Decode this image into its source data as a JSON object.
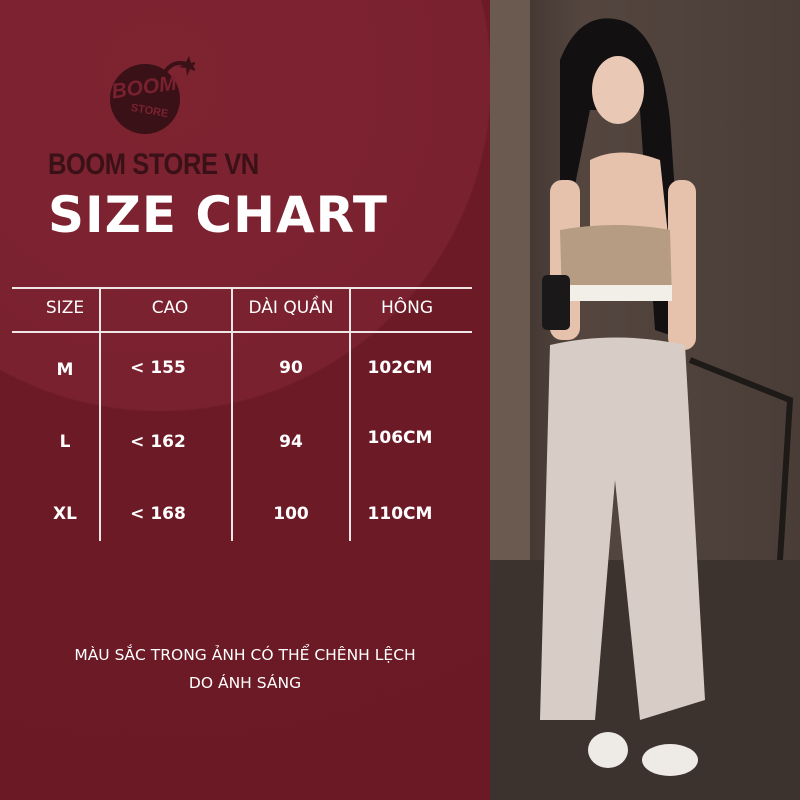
{
  "brand": {
    "logo_text": "BOOM STORE",
    "name": "BOOM STORE VN"
  },
  "title": "SIZE CHART",
  "table": {
    "headers": [
      "SIZE",
      "CAO",
      "DÀI QUẦN",
      "HÔNG"
    ],
    "rows": [
      [
        "M",
        "< 155",
        "90",
        "102CM"
      ],
      [
        "L",
        "< 162",
        "94",
        "106CM"
      ],
      [
        "XL",
        "< 168",
        "100",
        "110CM"
      ]
    ]
  },
  "note": {
    "line1": "MÀU SẮC TRONG ẢNH CÓ THỂ CHÊNH LỆCH",
    "line2": "DO ÁNH SÁNG"
  },
  "colors": {
    "background": "#741e2b",
    "logo": "#3a1117",
    "text": "#ffffff"
  }
}
